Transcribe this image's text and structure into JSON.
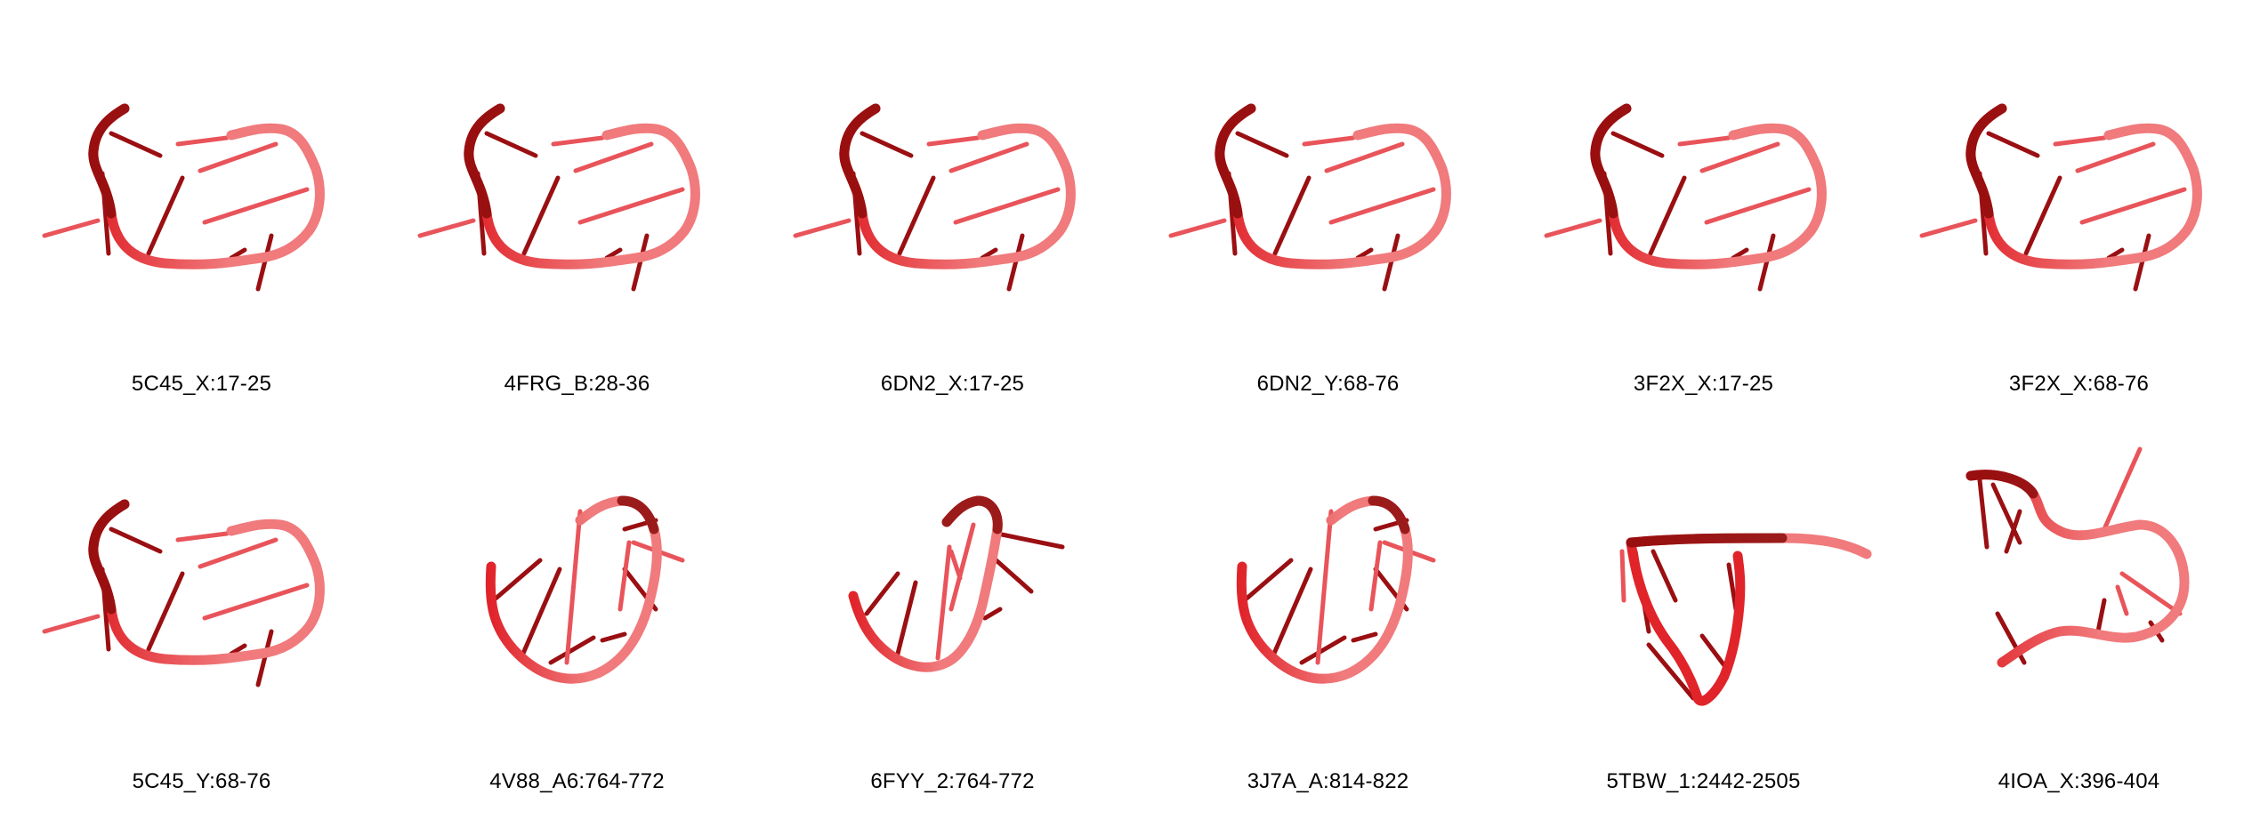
{
  "colors": {
    "backbone_dark": "#8c0a0a",
    "backbone_mid": "#e0242a",
    "backbone_light": "#f07a7c",
    "base_dark": "#9a0f12",
    "base_light": "#e8545a"
  },
  "panels": [
    {
      "label": "5C45_X:17-25",
      "shape": "loop"
    },
    {
      "label": "4FRG_B:28-36",
      "shape": "loop"
    },
    {
      "label": "6DN2_X:17-25",
      "shape": "loop"
    },
    {
      "label": "6DN2_Y:68-76",
      "shape": "loop"
    },
    {
      "label": "3F2X_X:17-25",
      "shape": "loop"
    },
    {
      "label": "3F2X_X:68-76",
      "shape": "loop"
    },
    {
      "label": "5C45_Y:68-76",
      "shape": "loop"
    },
    {
      "label": "4V88_A6:764-772",
      "shape": "tilted"
    },
    {
      "label": "6FYY_2:764-772",
      "shape": "tilted2"
    },
    {
      "label": "3J7A_A:814-822",
      "shape": "tilted"
    },
    {
      "label": "5TBW_1:2442-2505",
      "shape": "triangle"
    },
    {
      "label": "4IOA_X:396-404",
      "shape": "twist"
    }
  ]
}
